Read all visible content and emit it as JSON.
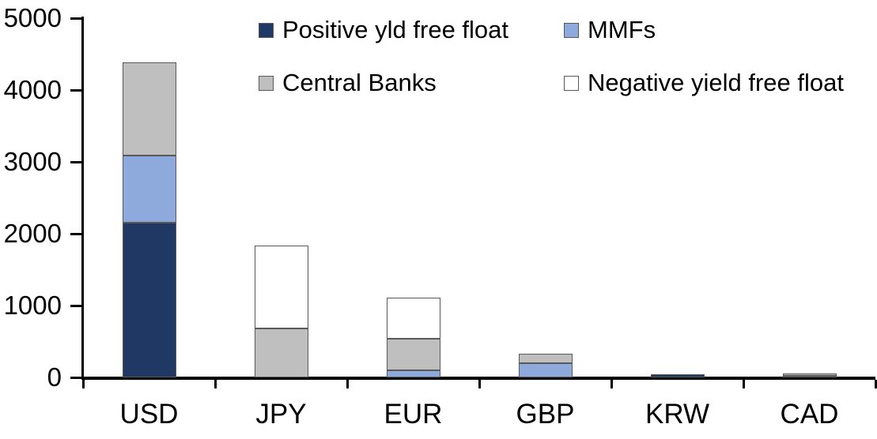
{
  "chart_data": {
    "type": "bar",
    "stacked": true,
    "categories": [
      "USD",
      "JPY",
      "EUR",
      "GBP",
      "KRW",
      "CAD"
    ],
    "series": [
      {
        "name": "Positive yld free float",
        "color": "#1F3864",
        "values": [
          2150,
          0,
          0,
          0,
          40,
          25
        ]
      },
      {
        "name": "MMFs",
        "color": "#8EA9DB",
        "values": [
          940,
          0,
          100,
          200,
          0,
          0
        ]
      },
      {
        "name": "Central Banks",
        "color": "#BFBFBF",
        "values": [
          1290,
          680,
          440,
          130,
          0,
          35
        ]
      },
      {
        "name": "Negative yield free float",
        "color": "#FFFFFF",
        "values": [
          0,
          1150,
          570,
          0,
          0,
          0
        ]
      }
    ],
    "totals": [
      4380,
      1830,
      1110,
      330,
      40,
      60
    ],
    "xlabel": "",
    "ylabel": "",
    "ylim": [
      0,
      5000
    ],
    "yticks": [
      0,
      1000,
      2000,
      3000,
      4000,
      5000
    ],
    "grid": false,
    "legend_position": "top-inside",
    "axis_color": "#000000",
    "segment_border_color": "#595959"
  }
}
